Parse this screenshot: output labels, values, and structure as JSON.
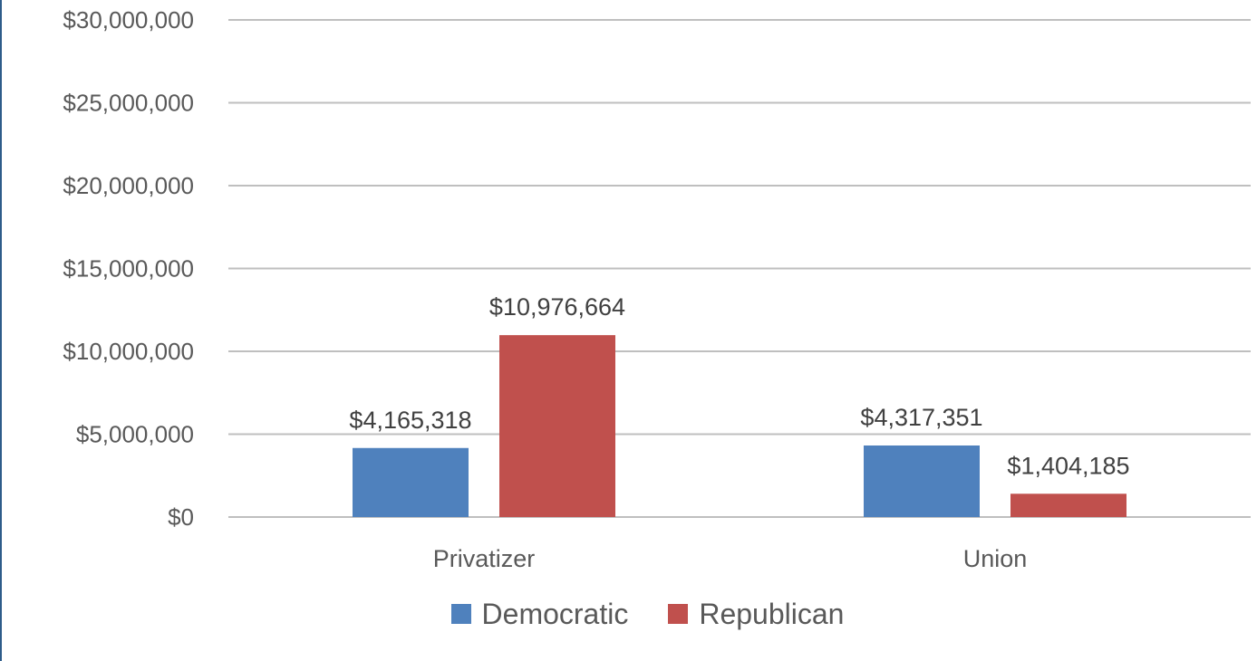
{
  "chart_data": {
    "type": "bar",
    "categories": [
      "Privatizer",
      "Union"
    ],
    "series": [
      {
        "name": "Democratic",
        "color": "#4f81bd",
        "values": [
          4165318,
          4317351
        ],
        "labels": [
          "$4,165,318",
          "$4,317,351"
        ]
      },
      {
        "name": "Republican",
        "color": "#c0504d",
        "values": [
          10976664,
          1404185
        ],
        "labels": [
          "$10,976,664",
          "$1,404,185"
        ]
      }
    ],
    "ylim": [
      0,
      30000000
    ],
    "yticks": [
      0,
      5000000,
      10000000,
      15000000,
      20000000,
      25000000,
      30000000
    ],
    "ytick_labels": [
      "$0",
      "$5,000,000",
      "$10,000,000",
      "$15,000,000",
      "$20,000,000",
      "$25,000,000",
      "$30,000,000"
    ],
    "grid": true,
    "legend_position": "bottom",
    "gridline_color": "#bfbfbf",
    "axis_color": "#bfbfbf"
  }
}
